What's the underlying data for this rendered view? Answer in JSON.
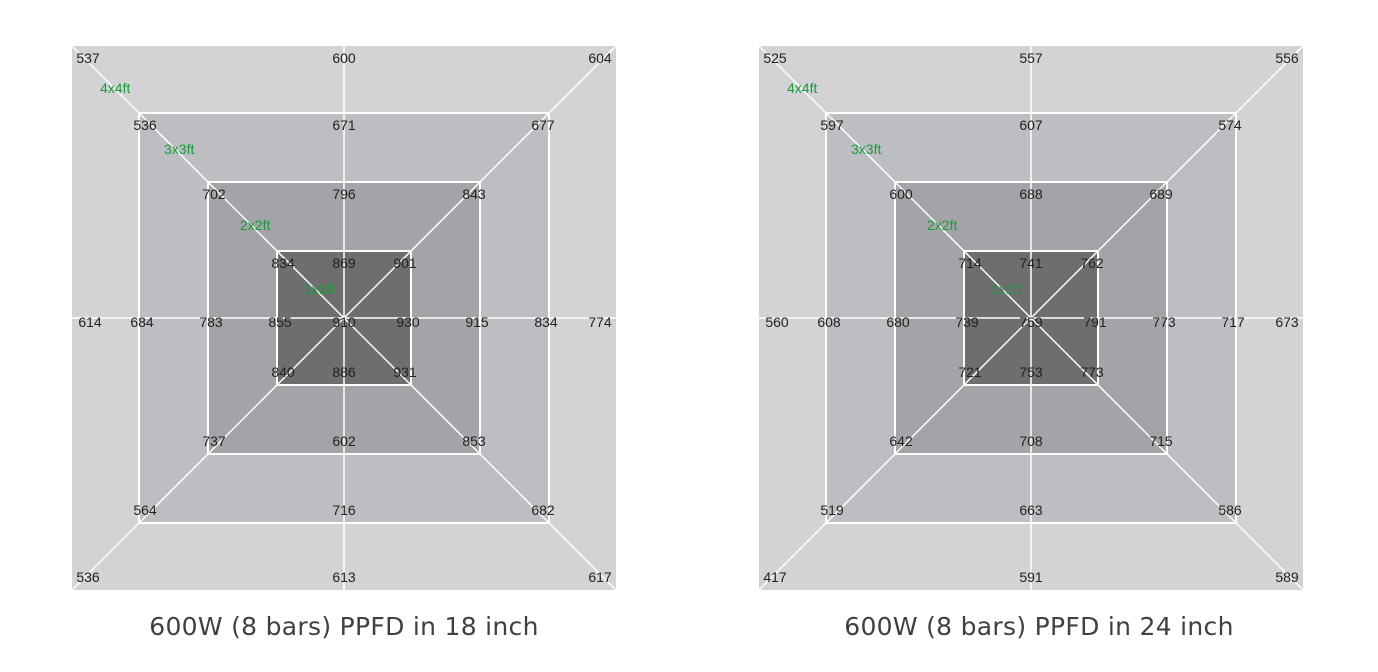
{
  "colors": {
    "zone_4x4": "#d3d3d5",
    "zone_3x3": "#bdbec1",
    "zone_2x2": "#a3a4a7",
    "zone_1x1": "#6e6e70",
    "grid_line": "#ffffff",
    "zone_label": "#1a9a3a"
  },
  "panels": [
    {
      "caption": "600W (8 bars) PPFD in 18 inch",
      "zone_labels": [
        "4x4ft",
        "3x3ft",
        "2x2ft",
        "1x1ft"
      ],
      "ring_4x4": {
        "tl": "537",
        "top": "600",
        "tr": "604",
        "left": "614",
        "right": "774",
        "bl": "536",
        "bottom": "613",
        "br": "617"
      },
      "ring_3x3": {
        "tl": "536",
        "top": "671",
        "tr": "677",
        "left": "684",
        "right": "834",
        "bl": "564",
        "bottom": "716",
        "br": "682"
      },
      "ring_2x2": {
        "tl": "702",
        "top": "796",
        "tr": "843",
        "left": "783",
        "right": "915",
        "bl": "737",
        "bottom": "602",
        "br": "853"
      },
      "ring_1x1": {
        "tl": "834",
        "top": "869",
        "tr": "901",
        "left": "855",
        "right": "930",
        "bl": "840",
        "bottom": "886",
        "br": "931"
      },
      "center": "910"
    },
    {
      "caption": "600W (8 bars) PPFD in 24 inch",
      "zone_labels": [
        "4x4ft",
        "3x3ft",
        "2x2ft",
        "1x1ft"
      ],
      "ring_4x4": {
        "tl": "525",
        "top": "557",
        "tr": "556",
        "left": "560",
        "right": "673",
        "bl": "417",
        "bottom": "591",
        "br": "589"
      },
      "ring_3x3": {
        "tl": "597",
        "top": "607",
        "tr": "574",
        "left": "608",
        "right": "717",
        "bl": "519",
        "bottom": "663",
        "br": "586"
      },
      "ring_2x2": {
        "tl": "600",
        "top": "688",
        "tr": "689",
        "left": "680",
        "right": "773",
        "bl": "642",
        "bottom": "708",
        "br": "715"
      },
      "ring_1x1": {
        "tl": "714",
        "top": "741",
        "tr": "762",
        "left": "739",
        "right": "791",
        "bl": "721",
        "bottom": "753",
        "br": "773"
      },
      "center": "759"
    }
  ]
}
